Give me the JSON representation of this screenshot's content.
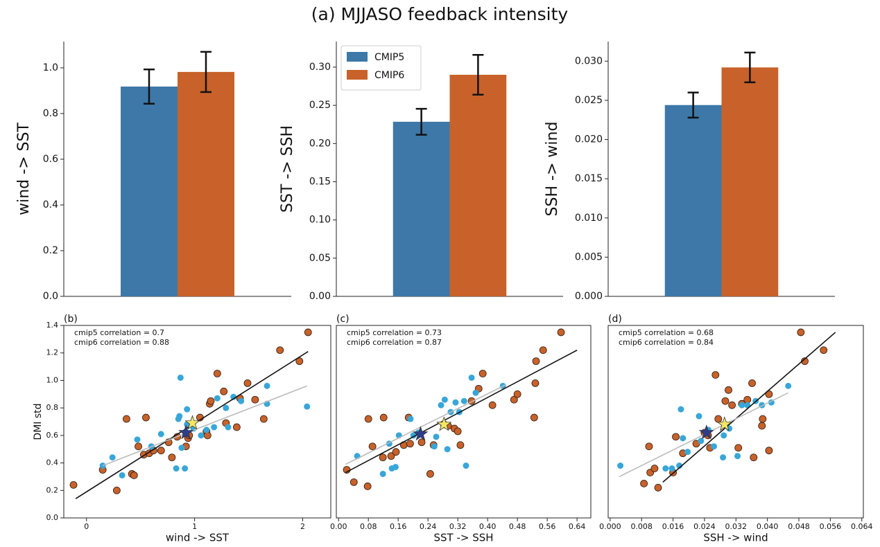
{
  "title": "(a) MJJASO feedback intensity",
  "chart_data": [
    {
      "type": "bar",
      "ylabel": "wind -> SST",
      "ylim": [
        0,
        1.115
      ],
      "yticks": [
        {
          "value": 0,
          "label": "0.0"
        },
        0.2,
        0.4,
        0.6,
        0.8,
        {
          "value": 1,
          "label": "1.0"
        }
      ],
      "series": [
        {
          "color": "#3d78a8",
          "values": [
            0.918
          ],
          "errors": [
            0.075
          ]
        },
        {
          "color": "#c8622a",
          "values": [
            0.982
          ],
          "errors": [
            0.088
          ]
        }
      ]
    },
    {
      "type": "bar",
      "ylabel": "SST -> SSH",
      "ylim": [
        0,
        0.3335
      ],
      "legend": "upper left",
      "yticks": [
        {
          "value": 0,
          "label": "0.00"
        },
        0.05,
        {
          "value": 0.1,
          "label": "0.10"
        },
        0.15,
        {
          "value": 0.2,
          "label": "0.20"
        },
        0.25,
        {
          "value": 0.3,
          "label": "0.30"
        }
      ],
      "series": [
        {
          "name": "CMIP5",
          "color": "#3d78a8",
          "values": [
            0.2285
          ],
          "errors": [
            0.017
          ]
        },
        {
          "name": "CMIP6",
          "color": "#c8622a",
          "values": [
            0.29
          ],
          "errors": [
            0.026
          ]
        }
      ]
    },
    {
      "type": "bar",
      "ylabel": "SSH -> wind",
      "ylim": [
        0,
        0.0325
      ],
      "yticks": [
        {
          "value": 0,
          "label": "0.000"
        },
        0.005,
        {
          "value": 0.01,
          "label": "0.010"
        },
        0.015,
        {
          "value": 0.02,
          "label": "0.020"
        },
        0.025,
        {
          "value": 0.03,
          "label": "0.030"
        }
      ],
      "series": [
        {
          "color": "#3d78a8",
          "values": [
            0.0244
          ],
          "errors": [
            0.0016
          ]
        },
        {
          "color": "#c8622a",
          "values": [
            0.0292
          ],
          "errors": [
            0.0019
          ]
        }
      ]
    },
    {
      "type": "scatter",
      "panel_label": "(b)",
      "annotations": [
        "cmip5 correlation = 0.7",
        "cmip6 correlation = 0.88"
      ],
      "xlabel": "wind -> SST",
      "ylabel": "DMI std",
      "xlim": [
        -0.21,
        2.26
      ],
      "ylim": [
        0,
        1.4
      ],
      "xticks": [
        0,
        1,
        2
      ],
      "yticks": [
        {
          "value": 0,
          "label": "0.0"
        },
        0.2,
        0.4,
        0.6,
        0.8,
        {
          "value": 1,
          "label": "1.0"
        },
        1.2,
        1.4
      ],
      "series": [
        {
          "color": "#c8622a",
          "edgecolor": "#2b1a10",
          "x": [
            -0.12,
            0.15,
            0.28,
            0.37,
            0.42,
            0.44,
            0.48,
            0.53,
            0.55,
            0.58,
            0.62,
            0.69,
            0.79,
            0.76,
            0.84,
            0.92,
            0.94,
            0.95,
            1.05,
            1.11,
            1.12,
            1.14,
            1.15,
            1.21,
            1.27,
            1.29,
            1.39,
            1.42,
            1.49,
            1.56,
            1.64,
            1.79,
            1.97,
            2.05
          ],
          "y": [
            0.24,
            0.35,
            0.2,
            0.72,
            0.32,
            0.31,
            0.52,
            0.46,
            0.73,
            0.47,
            0.49,
            0.49,
            0.44,
            0.55,
            0.59,
            0.52,
            0.58,
            0.6,
            0.73,
            0.63,
            0.6,
            0.83,
            0.85,
            1.05,
            0.92,
            0.69,
            0.66,
            0.87,
            0.98,
            0.86,
            0.72,
            1.22,
            1.14,
            1.35
          ]
        },
        {
          "color": "#38a6d8",
          "x": [
            0.15,
            0.24,
            0.33,
            0.47,
            0.6,
            0.69,
            0.85,
            0.86,
            0.87,
            0.83,
            0.91,
            0.88,
            0.93,
            0.93,
            0.99,
            1.06,
            1.11,
            1.18,
            1.21,
            1.29,
            1.36,
            1.43,
            1.31,
            1.67,
            1.67,
            2.04
          ],
          "y": [
            0.38,
            0.44,
            0.31,
            0.57,
            0.52,
            0.61,
            0.72,
            0.74,
            1.02,
            0.36,
            0.36,
            0.51,
            0.79,
            0.68,
            0.65,
            0.6,
            0.64,
            0.66,
            0.87,
            0.8,
            0.88,
            0.85,
            0.66,
            0.96,
            0.83,
            0.81
          ]
        }
      ],
      "fit_lines": [
        {
          "color": "#111111",
          "x": [
            -0.1,
            2.05
          ],
          "y": [
            0.14,
            1.21
          ]
        },
        {
          "color": "#bbbbbb",
          "x": [
            0.15,
            2.04
          ],
          "y": [
            0.38,
            0.96
          ]
        }
      ],
      "stars": [
        {
          "color": "#2c3e8c",
          "x": 0.92,
          "y": 0.62
        },
        {
          "color": "#f5e663",
          "x": 0.98,
          "y": 0.69
        }
      ]
    },
    {
      "type": "scatter",
      "panel_label": "(c)",
      "annotations": [
        "cmip5 correlation = 0.73",
        "cmip6 correlation = 0.87"
      ],
      "xlabel": "SST -> SSH",
      "xlim": [
        -0.006,
        0.677
      ],
      "ylim": [
        0,
        1.4
      ],
      "xticks": [
        {
          "value": 0,
          "label": "0.00"
        },
        0.08,
        0.16,
        0.24,
        0.32,
        {
          "value": 0.4,
          "label": "0.40"
        },
        0.48,
        0.56,
        0.64
      ],
      "series": [
        {
          "color": "#c8622a",
          "edgecolor": "#2b1a10",
          "x": [
            0.022,
            0.041,
            0.078,
            0.08,
            0.091,
            0.121,
            0.119,
            0.141,
            0.154,
            0.175,
            0.188,
            0.192,
            0.223,
            0.246,
            0.255,
            0.283,
            0.294,
            0.311,
            0.32,
            0.327,
            0.357,
            0.376,
            0.387,
            0.413,
            0.471,
            0.48,
            0.525,
            0.53,
            0.528,
            0.549,
            0.597
          ],
          "y": [
            0.35,
            0.26,
            0.23,
            0.72,
            0.52,
            0.73,
            0.44,
            0.45,
            0.48,
            0.53,
            0.73,
            0.54,
            0.55,
            0.32,
            0.53,
            0.68,
            0.67,
            0.65,
            0.63,
            0.53,
            0.85,
            0.94,
            1.05,
            0.82,
            0.86,
            0.9,
            0.73,
            1.14,
            0.98,
            1.22,
            1.35
          ]
        },
        {
          "color": "#38a6d8",
          "x": [
            0.05,
            0.119,
            0.143,
            0.153,
            0.136,
            0.162,
            0.193,
            0.201,
            0.214,
            0.257,
            0.262,
            0.275,
            0.285,
            0.292,
            0.301,
            0.314,
            0.324,
            0.337,
            0.342,
            0.357,
            0.368,
            0.441
          ],
          "y": [
            0.45,
            0.32,
            0.36,
            0.37,
            0.54,
            0.6,
            0.72,
            0.6,
            0.62,
            0.52,
            0.59,
            0.82,
            0.86,
            0.5,
            0.77,
            0.84,
            0.77,
            0.85,
            0.38,
            1.02,
            0.91,
            0.96
          ]
        }
      ],
      "fit_lines": [
        {
          "color": "#111111",
          "x": [
            0.019,
            0.64
          ],
          "y": [
            0.33,
            1.22
          ]
        },
        {
          "color": "#bbbbbb",
          "x": [
            0.019,
            0.45
          ],
          "y": [
            0.39,
            0.97
          ]
        }
      ],
      "stars": [
        {
          "color": "#2c3e8c",
          "x": 0.22,
          "y": 0.61
        },
        {
          "color": "#f5e663",
          "x": 0.283,
          "y": 0.68
        }
      ]
    },
    {
      "type": "scatter",
      "panel_label": "(d)",
      "annotations": [
        "cmip5 correlation = 0.68",
        "cmip6 correlation = 0.84"
      ],
      "xlabel": "SSH -> wind",
      "xlim": [
        -0.0005,
        0.0644
      ],
      "ylim": [
        0,
        1.4
      ],
      "xticks": [
        {
          "value": 0,
          "label": "0.000"
        },
        0.008,
        0.016,
        0.024,
        0.032,
        {
          "value": 0.04,
          "label": "0.040"
        },
        0.048,
        0.056,
        0.064
      ],
      "series": [
        {
          "color": "#c8622a",
          "edgecolor": "#2b1a10",
          "x": [
            0.0086,
            0.0102,
            0.0113,
            0.0122,
            0.0099,
            0.016,
            0.0167,
            0.0185,
            0.0219,
            0.024,
            0.0249,
            0.0254,
            0.0268,
            0.0275,
            0.0293,
            0.0301,
            0.031,
            0.0326,
            0.0335,
            0.0349,
            0.0365,
            0.0361,
            0.0388,
            0.0386,
            0.0404,
            0.0404,
            0.0485,
            0.0495,
            0.0543
          ],
          "y": [
            0.25,
            0.33,
            0.36,
            0.22,
            0.52,
            0.33,
            0.59,
            0.47,
            0.54,
            0.62,
            0.6,
            0.51,
            1.04,
            0.72,
            0.85,
            0.93,
            0.82,
            0.51,
            0.83,
            0.86,
            0.44,
            0.98,
            0.72,
            0.67,
            0.49,
            0.9,
            1.35,
            1.14,
            1.22
          ]
        },
        {
          "color": "#38a6d8",
          "x": [
            0.0026,
            0.0141,
            0.0157,
            0.0176,
            0.0185,
            0.018,
            0.0197,
            0.0226,
            0.0231,
            0.025,
            0.0264,
            0.0287,
            0.0303,
            0.0324,
            0.0335,
            0.0349,
            0.037,
            0.0386,
            0.041,
            0.0453,
            0.0289
          ],
          "y": [
            0.38,
            0.36,
            0.36,
            0.38,
            0.58,
            0.79,
            0.48,
            0.74,
            0.56,
            0.64,
            0.52,
            0.44,
            0.65,
            0.45,
            0.82,
            0.82,
            0.85,
            0.82,
            0.84,
            0.96,
            0.6
          ]
        }
      ],
      "fit_lines": [
        {
          "color": "#111111",
          "x": [
            0.0134,
            0.0573
          ],
          "y": [
            0.26,
            1.35
          ]
        },
        {
          "color": "#bbbbbb",
          "x": [
            0.0023,
            0.0453
          ],
          "y": [
            0.3,
            0.91
          ]
        }
      ],
      "stars": [
        {
          "color": "#2c3e8c",
          "x": 0.0245,
          "y": 0.62
        },
        {
          "color": "#f5e663",
          "x": 0.0291,
          "y": 0.68
        }
      ]
    }
  ]
}
